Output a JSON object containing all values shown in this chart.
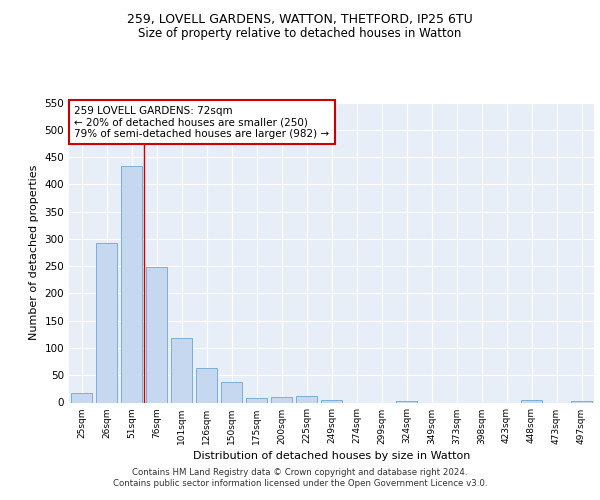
{
  "title1": "259, LOVELL GARDENS, WATTON, THETFORD, IP25 6TU",
  "title2": "Size of property relative to detached houses in Watton",
  "xlabel": "Distribution of detached houses by size in Watton",
  "ylabel": "Number of detached properties",
  "categories": [
    "25sqm",
    "26sqm",
    "51sqm",
    "76sqm",
    "101sqm",
    "126sqm",
    "150sqm",
    "175sqm",
    "200sqm",
    "225sqm",
    "249sqm",
    "274sqm",
    "299sqm",
    "324sqm",
    "349sqm",
    "373sqm",
    "398sqm",
    "423sqm",
    "448sqm",
    "473sqm",
    "497sqm"
  ],
  "values": [
    17,
    293,
    433,
    248,
    118,
    63,
    37,
    8,
    10,
    12,
    5,
    0,
    0,
    3,
    0,
    0,
    0,
    0,
    4,
    0,
    3
  ],
  "bar_color": "#c5d8f0",
  "bar_edge_color": "#7bafd4",
  "vline_color": "#cc0000",
  "annotation_text": "259 LOVELL GARDENS: 72sqm\n← 20% of detached houses are smaller (250)\n79% of semi-detached houses are larger (982) →",
  "annotation_box_color": "white",
  "annotation_box_edge": "#cc0000",
  "ylim": [
    0,
    550
  ],
  "yticks": [
    0,
    50,
    100,
    150,
    200,
    250,
    300,
    350,
    400,
    450,
    500,
    550
  ],
  "background_color": "#e8eef8",
  "footer1": "Contains HM Land Registry data © Crown copyright and database right 2024.",
  "footer2": "Contains public sector information licensed under the Open Government Licence v3.0.",
  "title1_fontsize": 9,
  "title2_fontsize": 8.5,
  "xlabel_fontsize": 8,
  "ylabel_fontsize": 8,
  "annotation_fontsize": 7.5
}
